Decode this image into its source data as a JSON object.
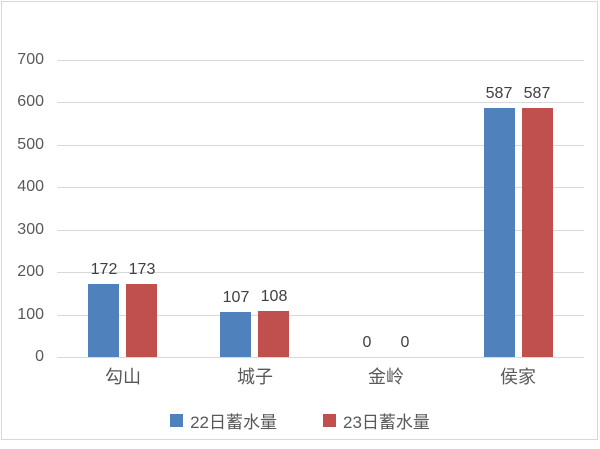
{
  "chart_data": {
    "type": "bar",
    "title": "",
    "categories": [
      "勾山",
      "城子",
      "金岭",
      "侯家"
    ],
    "series": [
      {
        "name": "22日蓄水量",
        "color": "#4f81bd",
        "values": [
          172,
          107,
          0,
          587
        ]
      },
      {
        "name": "23日蓄水量",
        "color": "#c0504d",
        "values": [
          173,
          108,
          0,
          587
        ]
      }
    ],
    "xlabel": "",
    "ylabel": "",
    "ylim": [
      0,
      700
    ],
    "yticks": [
      0,
      100,
      200,
      300,
      400,
      500,
      600,
      700
    ],
    "grid": true,
    "data_labels": true,
    "legend_position": "bottom"
  },
  "colors": {
    "background": "#ffffff",
    "frame_border": "#d8d8d8",
    "gridline": "#d9d9d9",
    "tick_label": "#595959",
    "category_label": "#595959",
    "value_label": "#404040"
  }
}
